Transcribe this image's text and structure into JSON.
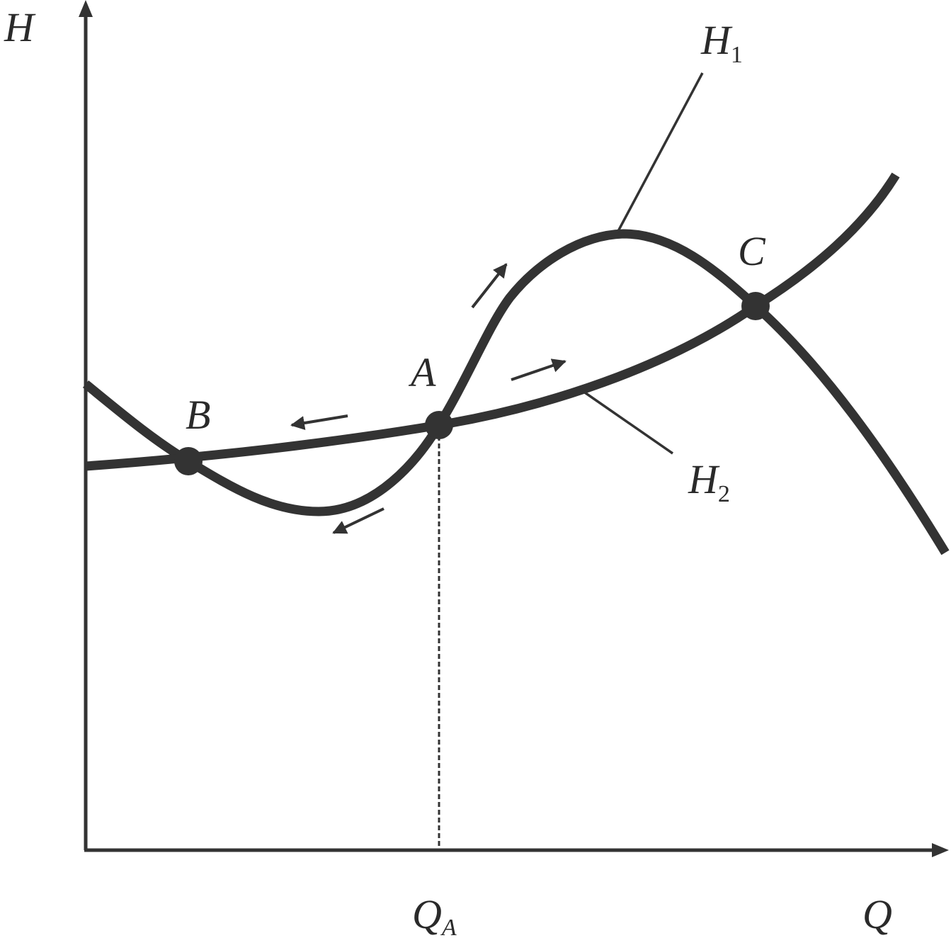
{
  "chart_data": {
    "type": "line",
    "title": "",
    "axes": {
      "y_label": "H",
      "x_label": "Q",
      "x_tick": {
        "main": "Q",
        "sub": "A"
      }
    },
    "series": [
      {
        "key": "H1",
        "label": {
          "main": "H",
          "sub": "1"
        }
      },
      {
        "key": "H2",
        "label": {
          "main": "H",
          "sub": "2"
        }
      }
    ],
    "points": [
      {
        "key": "A",
        "label": "A"
      },
      {
        "key": "B",
        "label": "B"
      },
      {
        "key": "C",
        "label": "C"
      }
    ],
    "grid": false,
    "legend": "none",
    "colors": {
      "curve": "#333333",
      "axis": "#333333",
      "text": "#2a2a2a",
      "background": "#ffffff"
    }
  }
}
